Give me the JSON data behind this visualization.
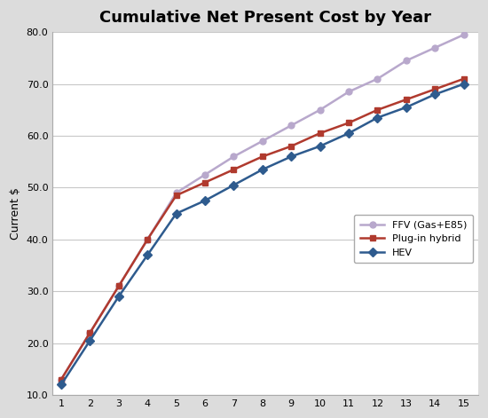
{
  "title": "Cumulative Net Present Cost by Year",
  "xlabel": "",
  "ylabel": "Current $",
  "x": [
    1,
    2,
    3,
    4,
    5,
    6,
    7,
    8,
    9,
    10,
    11,
    12,
    13,
    14,
    15
  ],
  "plug_in_hybrid": [
    13.0,
    22.0,
    31.0,
    40.0,
    48.5,
    51.0,
    53.5,
    56.0,
    58.0,
    60.5,
    62.5,
    65.0,
    67.0,
    69.0,
    71.0
  ],
  "ffv": [
    13.0,
    22.0,
    31.0,
    40.0,
    49.0,
    52.5,
    56.0,
    59.0,
    62.0,
    65.0,
    68.5,
    71.0,
    74.5,
    77.0,
    79.5
  ],
  "hev": [
    12.0,
    20.5,
    29.0,
    37.0,
    45.0,
    47.5,
    50.5,
    53.5,
    56.0,
    58.0,
    60.5,
    63.5,
    65.5,
    68.0,
    70.0
  ],
  "plug_in_color": "#B03A2E",
  "ffv_color": "#B8A8CC",
  "hev_color": "#2E5B8E",
  "ylim": [
    10.0,
    80.0
  ],
  "yticks": [
    10.0,
    20.0,
    30.0,
    40.0,
    50.0,
    60.0,
    70.0,
    80.0
  ],
  "xticks": [
    1,
    2,
    3,
    4,
    5,
    6,
    7,
    8,
    9,
    10,
    11,
    12,
    13,
    14,
    15
  ],
  "legend_plug": "Plug-in hybrid",
  "legend_ffv": "FFV (Gas+E85)",
  "legend_hev": "HEV",
  "fig_bg_color": "#DCDCDC",
  "plot_bg_color": "#FFFFFF",
  "title_fontsize": 13,
  "label_fontsize": 9,
  "tick_fontsize": 8,
  "legend_fontsize": 8,
  "linewidth": 1.8,
  "markersize": 5
}
